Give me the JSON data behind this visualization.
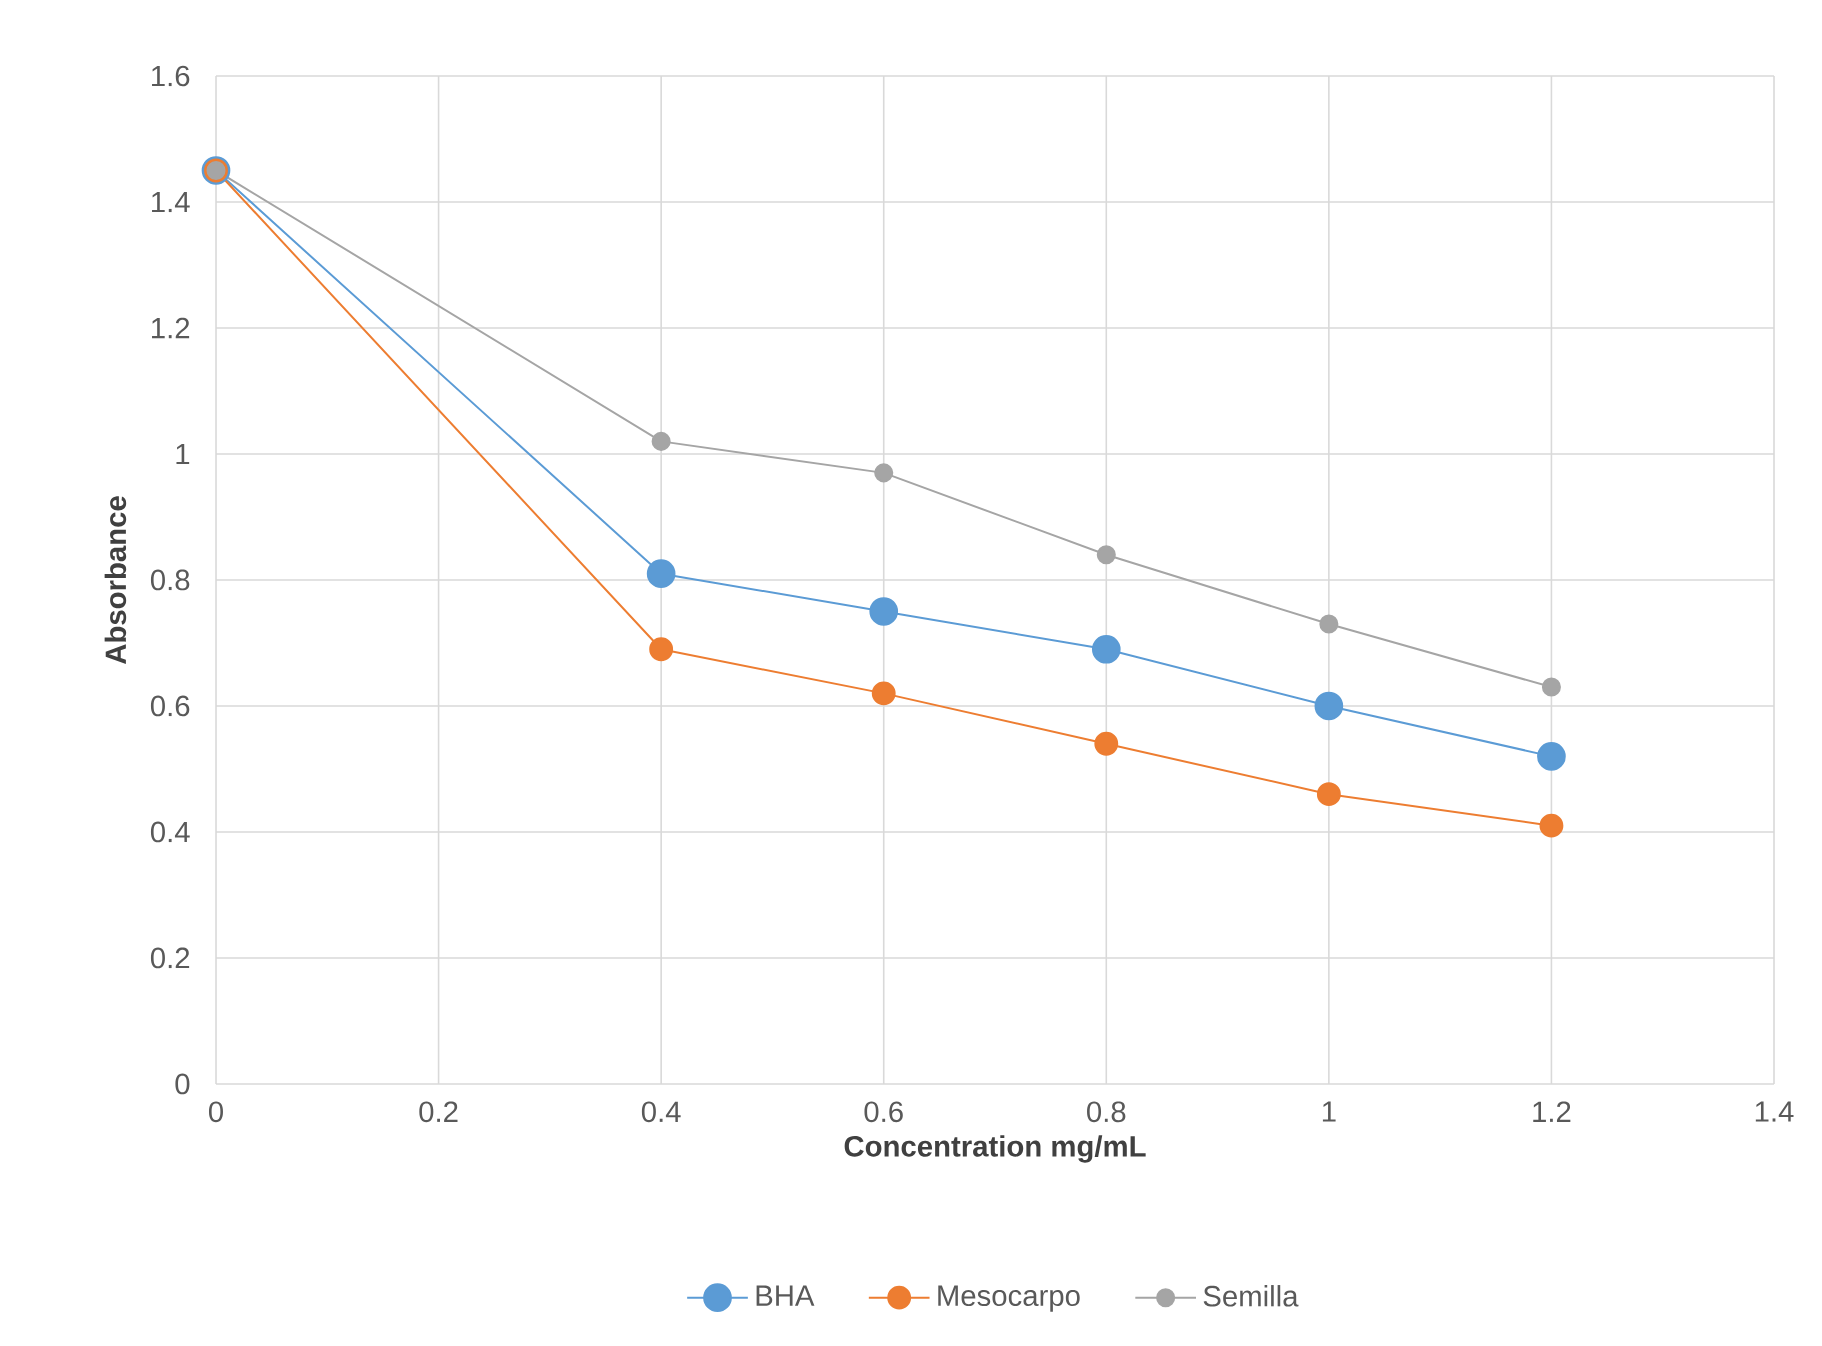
{
  "chart_data": {
    "type": "line",
    "xlabel": "Concentration mg/mL",
    "ylabel": "Absorbance",
    "x": [
      0,
      0.4,
      0.6,
      0.8,
      1,
      1.2
    ],
    "series": [
      {
        "name": "BHA",
        "color": "#5b9bd5",
        "values": [
          1.45,
          0.81,
          0.75,
          0.69,
          0.6,
          0.52
        ]
      },
      {
        "name": "Mesocarpo",
        "color": "#ed7d31",
        "values": [
          1.45,
          0.69,
          0.62,
          0.54,
          0.46,
          0.41
        ]
      },
      {
        "name": "Semilla",
        "color": "#a5a5a5",
        "values": [
          1.45,
          1.02,
          0.97,
          0.84,
          0.73,
          0.63
        ]
      }
    ],
    "xlim": [
      0,
      1.4
    ],
    "ylim": [
      0,
      1.6
    ],
    "xticks": [
      0,
      0.2,
      0.4,
      0.6,
      0.8,
      1,
      1.2,
      1.4
    ],
    "yticks": [
      0,
      0.2,
      0.4,
      0.6,
      0.8,
      1,
      1.2,
      1.4,
      1.6
    ],
    "grid": true,
    "legend": "bottom",
    "marker": "circle",
    "line_style": "solid"
  }
}
